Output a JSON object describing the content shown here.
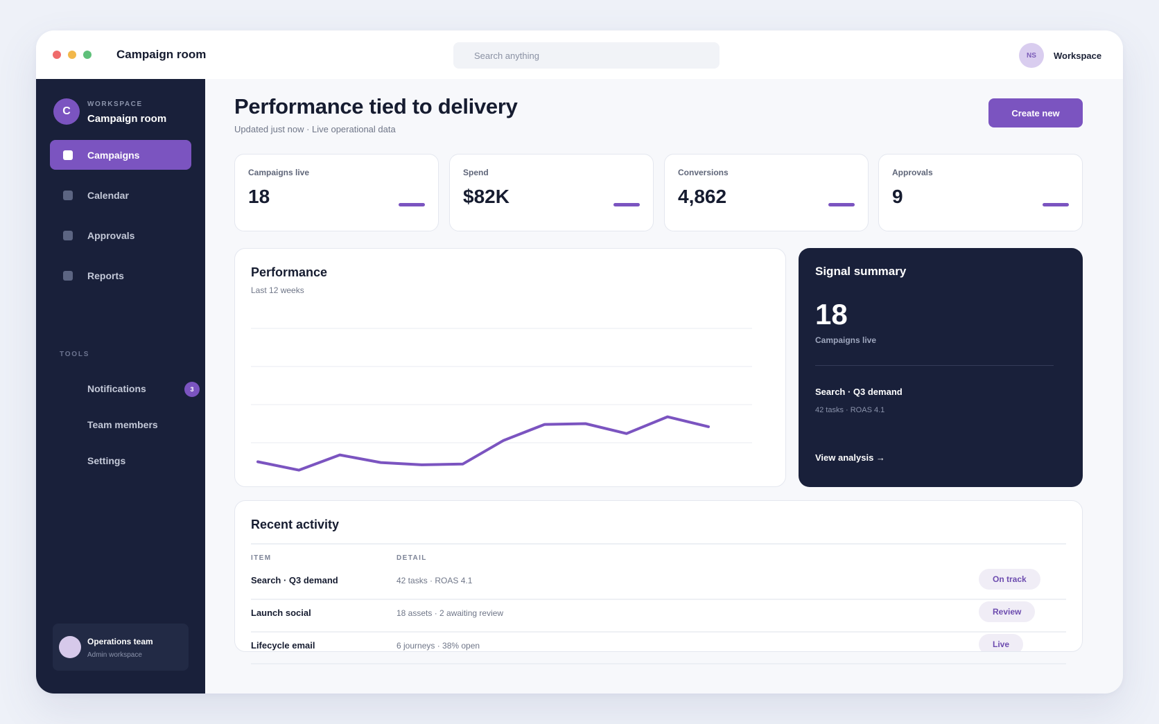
{
  "window": {
    "title": "Campaign room",
    "search_placeholder": "Search anything",
    "user_initials": "NS",
    "workspace_label": "Workspace"
  },
  "sidebar": {
    "workspace_initial": "C",
    "workspace_caption": "WORKSPACE",
    "workspace_name": "Campaign room",
    "nav": [
      {
        "label": "Campaigns",
        "active": true
      },
      {
        "label": "Calendar",
        "active": false
      },
      {
        "label": "Approvals",
        "active": false
      },
      {
        "label": "Reports",
        "active": false
      }
    ],
    "tools_caption": "TOOLS",
    "tools": [
      {
        "label": "Notifications",
        "badge": "3"
      },
      {
        "label": "Team members"
      },
      {
        "label": "Settings"
      }
    ],
    "team": {
      "name": "Operations team",
      "subtitle": "Admin workspace"
    }
  },
  "header": {
    "title": "Performance tied to delivery",
    "subtitle": "Updated just now · Live operational data",
    "create_button": "Create new"
  },
  "stats": [
    {
      "label": "Campaigns live",
      "value": "18"
    },
    {
      "label": "Spend",
      "value": "$82K"
    },
    {
      "label": "Conversions",
      "value": "4,862"
    },
    {
      "label": "Approvals",
      "value": "9"
    }
  ],
  "performance": {
    "title": "Performance",
    "subtitle": "Last 12 weeks"
  },
  "chart_data": {
    "type": "line",
    "x": [
      1,
      2,
      3,
      4,
      5,
      6,
      7,
      8,
      9,
      10,
      11,
      12
    ],
    "series": [
      {
        "values": [
          25,
          14,
          34,
          24,
          21,
          22,
          53,
          74,
          75,
          62,
          84,
          71
        ]
      }
    ],
    "ylim": [
      0,
      200
    ],
    "grid": true,
    "color": "#7b54c0"
  },
  "signal": {
    "title": "Signal summary",
    "value": "18",
    "label": "Campaigns live",
    "item_title": "Search · Q3 demand",
    "item_detail": "42 tasks · ROAS 4.1",
    "link": "View analysis →"
  },
  "activity": {
    "title": "Recent activity",
    "columns": [
      "ITEM",
      "DETAIL"
    ],
    "rows": [
      {
        "item": "Search · Q3 demand",
        "detail": "42 tasks · ROAS 4.1",
        "status": "On track"
      },
      {
        "item": "Launch social",
        "detail": "18 assets · 2 awaiting review",
        "status": "Review"
      },
      {
        "item": "Lifecycle email",
        "detail": "6 journeys · 38% open",
        "status": "Live"
      }
    ]
  },
  "colors": {
    "accent": "#7b54c0",
    "sidebar": "#19203a",
    "background": "#eef1f8"
  }
}
